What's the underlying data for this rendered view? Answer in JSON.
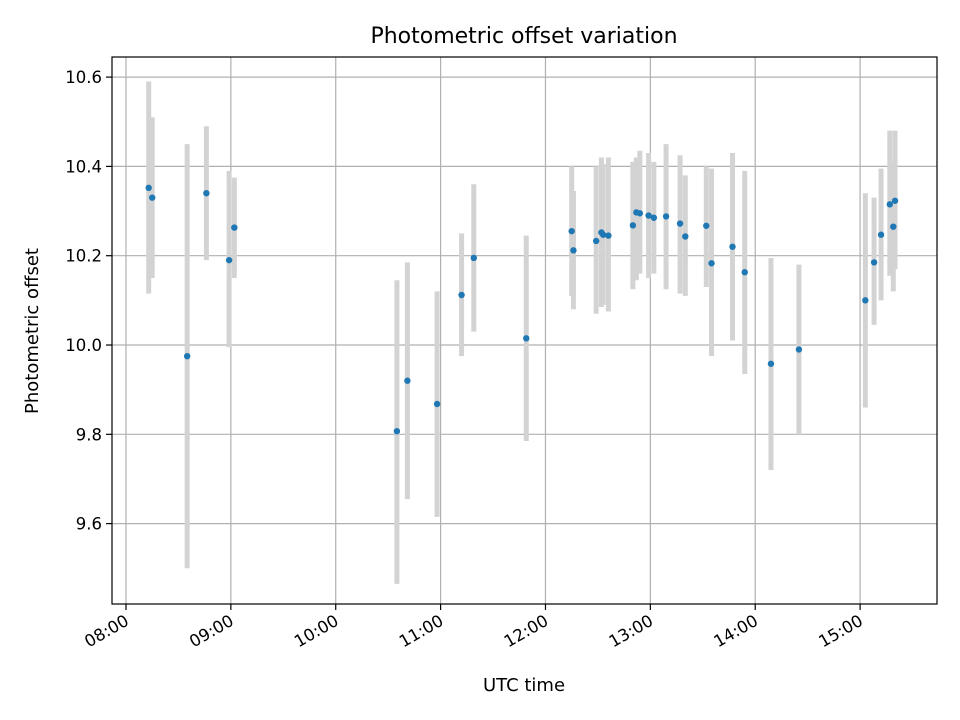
{
  "chart_data": {
    "type": "scatter",
    "title": "Photometric offset variation",
    "xlabel": "UTC time",
    "ylabel": "Photometric offset",
    "x_unit": "time (HH:MM)",
    "xlim": [
      "07:52",
      "15:44"
    ],
    "ylim": [
      9.42,
      10.645
    ],
    "x_ticks": [
      "08:00",
      "09:00",
      "10:00",
      "11:00",
      "12:00",
      "13:00",
      "14:00",
      "15:00"
    ],
    "y_ticks": [
      9.6,
      9.8,
      10.0,
      10.2,
      10.4,
      10.6
    ],
    "y_tick_labels": [
      "9.6",
      "9.8",
      "10.0",
      "10.2",
      "10.4",
      "10.6"
    ],
    "grid": true,
    "marker_color": "#1f77b4",
    "errorbar_color": "#d3d3d3",
    "points": [
      {
        "x": "08:13",
        "y": 10.352,
        "lo": 10.115,
        "hi": 10.59
      },
      {
        "x": "08:15",
        "y": 10.33,
        "lo": 10.15,
        "hi": 10.51
      },
      {
        "x": "08:35",
        "y": 9.975,
        "lo": 9.5,
        "hi": 10.45
      },
      {
        "x": "08:46",
        "y": 10.34,
        "lo": 10.19,
        "hi": 10.49
      },
      {
        "x": "08:59",
        "y": 10.19,
        "lo": 9.995,
        "hi": 10.39
      },
      {
        "x": "09:02",
        "y": 10.263,
        "lo": 10.15,
        "hi": 10.375
      },
      {
        "x": "10:35",
        "y": 9.807,
        "lo": 9.465,
        "hi": 10.145
      },
      {
        "x": "10:41",
        "y": 9.92,
        "lo": 9.655,
        "hi": 10.185
      },
      {
        "x": "10:58",
        "y": 9.868,
        "lo": 9.615,
        "hi": 10.12
      },
      {
        "x": "11:12",
        "y": 10.112,
        "lo": 9.975,
        "hi": 10.25
      },
      {
        "x": "11:19",
        "y": 10.195,
        "lo": 10.03,
        "hi": 10.36
      },
      {
        "x": "11:49",
        "y": 10.015,
        "lo": 9.785,
        "hi": 10.245
      },
      {
        "x": "12:15",
        "y": 10.255,
        "lo": 10.11,
        "hi": 10.4
      },
      {
        "x": "12:16",
        "y": 10.212,
        "lo": 10.08,
        "hi": 10.345
      },
      {
        "x": "12:29",
        "y": 10.233,
        "lo": 10.07,
        "hi": 10.4
      },
      {
        "x": "12:32",
        "y": 10.252,
        "lo": 10.085,
        "hi": 10.42
      },
      {
        "x": "12:33",
        "y": 10.247,
        "lo": 10.09,
        "hi": 10.405
      },
      {
        "x": "12:36",
        "y": 10.245,
        "lo": 10.075,
        "hi": 10.42
      },
      {
        "x": "12:50",
        "y": 10.268,
        "lo": 10.125,
        "hi": 10.41
      },
      {
        "x": "12:52",
        "y": 10.297,
        "lo": 10.145,
        "hi": 10.42
      },
      {
        "x": "12:54",
        "y": 10.295,
        "lo": 10.16,
        "hi": 10.435
      },
      {
        "x": "12:59",
        "y": 10.29,
        "lo": 10.15,
        "hi": 10.43
      },
      {
        "x": "13:02",
        "y": 10.285,
        "lo": 10.16,
        "hi": 10.41
      },
      {
        "x": "13:09",
        "y": 10.288,
        "lo": 10.125,
        "hi": 10.45
      },
      {
        "x": "13:17",
        "y": 10.272,
        "lo": 10.115,
        "hi": 10.425
      },
      {
        "x": "13:20",
        "y": 10.243,
        "lo": 10.11,
        "hi": 10.38
      },
      {
        "x": "13:32",
        "y": 10.267,
        "lo": 10.13,
        "hi": 10.4
      },
      {
        "x": "13:35",
        "y": 10.183,
        "lo": 9.975,
        "hi": 10.395
      },
      {
        "x": "13:47",
        "y": 10.22,
        "lo": 10.01,
        "hi": 10.43
      },
      {
        "x": "13:54",
        "y": 10.163,
        "lo": 9.935,
        "hi": 10.39
      },
      {
        "x": "14:09",
        "y": 9.958,
        "lo": 9.72,
        "hi": 10.195
      },
      {
        "x": "14:25",
        "y": 9.99,
        "lo": 9.8,
        "hi": 10.18
      },
      {
        "x": "15:03",
        "y": 10.1,
        "lo": 9.86,
        "hi": 10.34
      },
      {
        "x": "15:08",
        "y": 10.185,
        "lo": 10.045,
        "hi": 10.33
      },
      {
        "x": "15:12",
        "y": 10.247,
        "lo": 10.1,
        "hi": 10.395
      },
      {
        "x": "15:17",
        "y": 10.315,
        "lo": 10.155,
        "hi": 10.48
      },
      {
        "x": "15:19",
        "y": 10.265,
        "lo": 10.12,
        "hi": 10.41
      },
      {
        "x": "15:20",
        "y": 10.323,
        "lo": 10.17,
        "hi": 10.48
      }
    ]
  }
}
